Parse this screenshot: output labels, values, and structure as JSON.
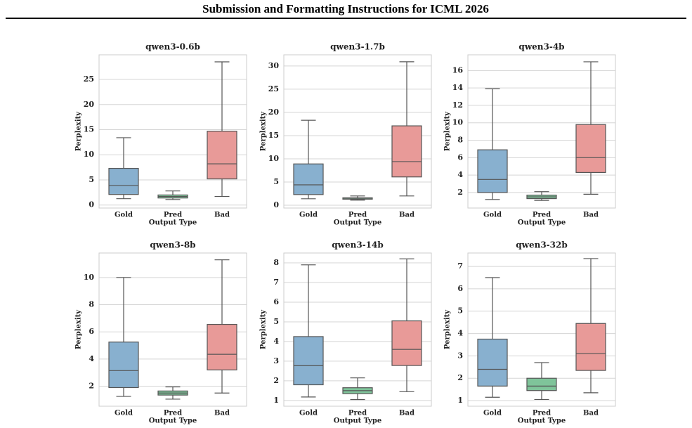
{
  "header": {
    "title": "Submission and Formatting Instructions for ICML 2026"
  },
  "chart_data": [
    {
      "type": "box",
      "title": "qwen3-0.6b",
      "xlabel": "Output Type",
      "ylabel": "Perplexity",
      "categories": [
        "Gold",
        "Pred",
        "Bad"
      ],
      "colors": [
        "#88b0cf",
        "#7fc49a",
        "#e89a98"
      ],
      "stats": [
        {
          "min": 1.26,
          "q1": 2.1,
          "median": 3.9,
          "q3": 7.3,
          "max": 13.4
        },
        {
          "min": 1.1,
          "q1": 1.4,
          "median": 1.7,
          "q3": 2.0,
          "max": 2.8
        },
        {
          "min": 1.7,
          "q1": 5.2,
          "median": 8.2,
          "q3": 14.7,
          "max": 28.5
        }
      ],
      "ylim": [
        -0.6,
        29.9
      ],
      "yticks": [
        0,
        5,
        10,
        15,
        20,
        25
      ],
      "grid": true
    },
    {
      "type": "box",
      "title": "qwen3-1.7b",
      "xlabel": "Output Type",
      "ylabel": "Perplexity",
      "categories": [
        "Gold",
        "Pred",
        "Bad"
      ],
      "colors": [
        "#88b0cf",
        "#7fc49a",
        "#e89a98"
      ],
      "stats": [
        {
          "min": 1.4,
          "q1": 2.3,
          "median": 4.4,
          "q3": 8.9,
          "max": 18.3
        },
        {
          "min": 1.1,
          "q1": 1.3,
          "median": 1.4,
          "q3": 1.6,
          "max": 2.0
        },
        {
          "min": 2.0,
          "q1": 6.1,
          "median": 9.4,
          "q3": 17.1,
          "max": 30.9
        }
      ],
      "ylim": [
        -0.6,
        32.4
      ],
      "yticks": [
        0,
        5,
        10,
        15,
        20,
        25,
        30
      ],
      "grid": true
    },
    {
      "type": "box",
      "title": "qwen3-4b",
      "xlabel": "Output Type",
      "ylabel": "Perplexity",
      "categories": [
        "Gold",
        "Pred",
        "Bad"
      ],
      "colors": [
        "#88b0cf",
        "#7fc49a",
        "#e89a98"
      ],
      "stats": [
        {
          "min": 1.2,
          "q1": 2.0,
          "median": 3.5,
          "q3": 6.9,
          "max": 13.9
        },
        {
          "min": 1.1,
          "q1": 1.3,
          "median": 1.5,
          "q3": 1.7,
          "max": 2.1
        },
        {
          "min": 1.8,
          "q1": 4.3,
          "median": 6.0,
          "q3": 9.8,
          "max": 17.0
        }
      ],
      "ylim": [
        0.22,
        17.8
      ],
      "yticks": [
        2,
        4,
        6,
        8,
        10,
        12,
        14,
        16
      ],
      "grid": true
    },
    {
      "type": "box",
      "title": "qwen3-8b",
      "xlabel": "Output Type",
      "ylabel": "Perplexity",
      "categories": [
        "Gold",
        "Pred",
        "Bad"
      ],
      "colors": [
        "#88b0cf",
        "#7fc49a",
        "#e89a98"
      ],
      "stats": [
        {
          "min": 1.25,
          "q1": 1.9,
          "median": 3.15,
          "q3": 5.25,
          "max": 10.0
        },
        {
          "min": 1.05,
          "q1": 1.35,
          "median": 1.5,
          "q3": 1.65,
          "max": 1.95
        },
        {
          "min": 1.5,
          "q1": 3.2,
          "median": 4.35,
          "q3": 6.55,
          "max": 11.3
        }
      ],
      "ylim": [
        0.53,
        11.8
      ],
      "yticks": [
        2,
        4,
        6,
        8,
        10
      ],
      "grid": true
    },
    {
      "type": "box",
      "title": "qwen3-14b",
      "xlabel": "Output Type",
      "ylabel": "Perplexity",
      "categories": [
        "Gold",
        "Pred",
        "Bad"
      ],
      "colors": [
        "#88b0cf",
        "#7fc49a",
        "#e89a98"
      ],
      "stats": [
        {
          "min": 1.18,
          "q1": 1.8,
          "median": 2.77,
          "q3": 4.25,
          "max": 7.9
        },
        {
          "min": 1.05,
          "q1": 1.35,
          "median": 1.5,
          "q3": 1.65,
          "max": 2.15
        },
        {
          "min": 1.45,
          "q1": 2.78,
          "median": 3.6,
          "q3": 5.05,
          "max": 8.2
        }
      ],
      "ylim": [
        0.71,
        8.5
      ],
      "yticks": [
        1,
        2,
        3,
        4,
        5,
        6,
        7,
        8
      ],
      "grid": true
    },
    {
      "type": "box",
      "title": "qwen3-32b",
      "xlabel": "Output Type",
      "ylabel": "Perplexity",
      "categories": [
        "Gold",
        "Pred",
        "Bad"
      ],
      "colors": [
        "#88b0cf",
        "#7fc49a",
        "#e89a98"
      ],
      "stats": [
        {
          "min": 1.15,
          "q1": 1.65,
          "median": 2.4,
          "q3": 3.75,
          "max": 6.5
        },
        {
          "min": 1.05,
          "q1": 1.45,
          "median": 1.65,
          "q3": 2.0,
          "max": 2.7
        },
        {
          "min": 1.35,
          "q1": 2.35,
          "median": 3.1,
          "q3": 4.45,
          "max": 7.35
        }
      ],
      "ylim": [
        0.75,
        7.6
      ],
      "yticks": [
        1,
        2,
        3,
        4,
        5,
        6,
        7
      ],
      "grid": true
    }
  ]
}
